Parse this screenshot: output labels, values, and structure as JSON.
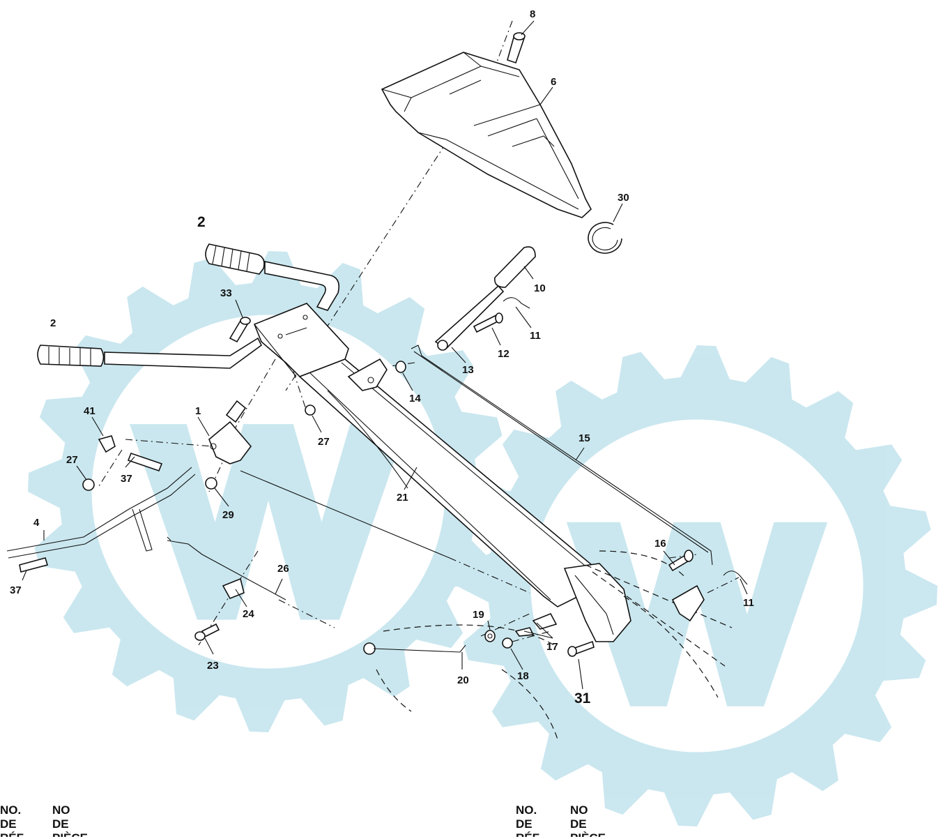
{
  "watermark": {
    "color": "#c8e6ef"
  },
  "callouts": [
    {
      "id": "c8",
      "text": "8",
      "size": "normal"
    },
    {
      "id": "c6",
      "text": "6",
      "size": "normal"
    },
    {
      "id": "c30",
      "text": "30",
      "size": "normal"
    },
    {
      "id": "c2a",
      "text": "2",
      "size": "big"
    },
    {
      "id": "c2b",
      "text": "2",
      "size": "normal"
    },
    {
      "id": "c10",
      "text": "10",
      "size": "normal"
    },
    {
      "id": "c33",
      "text": "33",
      "size": "normal"
    },
    {
      "id": "c11a",
      "text": "11",
      "size": "normal"
    },
    {
      "id": "c12",
      "text": "12",
      "size": "normal"
    },
    {
      "id": "c13",
      "text": "13",
      "size": "normal"
    },
    {
      "id": "c14",
      "text": "14",
      "size": "normal"
    },
    {
      "id": "c41",
      "text": "41",
      "size": "normal"
    },
    {
      "id": "c1",
      "text": "1",
      "size": "normal"
    },
    {
      "id": "c27a",
      "text": "27",
      "size": "normal"
    },
    {
      "id": "c27b",
      "text": "27",
      "size": "normal"
    },
    {
      "id": "c37a",
      "text": "37",
      "size": "normal"
    },
    {
      "id": "c15",
      "text": "15",
      "size": "normal"
    },
    {
      "id": "c21",
      "text": "21",
      "size": "normal"
    },
    {
      "id": "c29",
      "text": "29",
      "size": "normal"
    },
    {
      "id": "c4",
      "text": "4",
      "size": "normal"
    },
    {
      "id": "c16",
      "text": "16",
      "size": "normal"
    },
    {
      "id": "c37b",
      "text": "37",
      "size": "normal"
    },
    {
      "id": "c26",
      "text": "26",
      "size": "normal"
    },
    {
      "id": "c11b",
      "text": "11",
      "size": "normal"
    },
    {
      "id": "c24",
      "text": "24",
      "size": "normal"
    },
    {
      "id": "c19",
      "text": "19",
      "size": "normal"
    },
    {
      "id": "c17",
      "text": "17",
      "size": "normal"
    },
    {
      "id": "c23",
      "text": "23",
      "size": "normal"
    },
    {
      "id": "c18",
      "text": "18",
      "size": "normal"
    },
    {
      "id": "c20",
      "text": "20",
      "size": "normal"
    },
    {
      "id": "c31",
      "text": "31",
      "size": "big"
    }
  ],
  "footer": {
    "left_col1": "NO.\nDE\nRÉF.",
    "left_col2": "NO\nDE\nPIÈCE",
    "right_col1": "NO.\nDE\nRÉF.",
    "right_col2": "NO\nDE\nPIÈCE"
  }
}
